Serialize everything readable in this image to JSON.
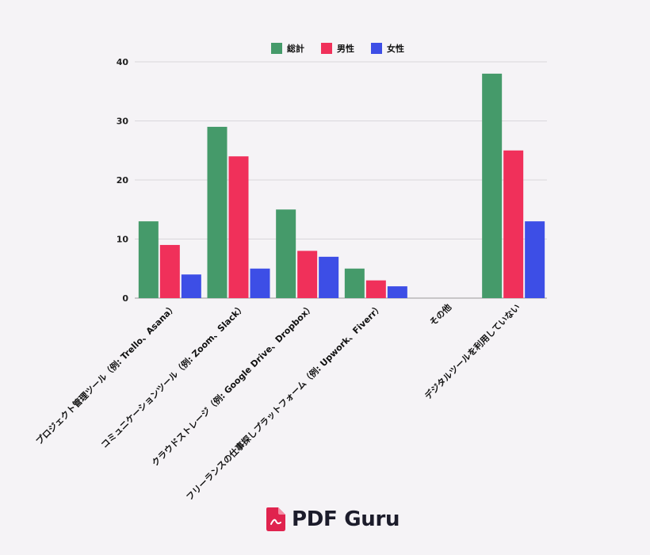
{
  "chart_data": {
    "type": "bar",
    "categories": [
      "プロジェクト管理ツール（例: Trello、Asana）",
      "コミュニケーションツール（例: Zoom、Slack）",
      "クラウドストレージ（例: Google Drive、Dropbox）",
      "フリーランスの仕事探しプラットフォーム（例: Upwork、Fiverr）",
      "その他",
      "デジタルツールを利用していない"
    ],
    "series": [
      {
        "name": "総計",
        "color": "#459a6a",
        "values": [
          13,
          29,
          15,
          5,
          0,
          38
        ]
      },
      {
        "name": "男性",
        "color": "#f0305a",
        "values": [
          9,
          24,
          8,
          3,
          0,
          25
        ]
      },
      {
        "name": "女性",
        "color": "#3d4ee6",
        "values": [
          4,
          5,
          7,
          2,
          0,
          13
        ]
      }
    ],
    "yticks": [
      0,
      10,
      20,
      30,
      40
    ],
    "ylim": [
      0,
      40
    ],
    "grid": true,
    "legend_position": "top-center"
  },
  "brand": {
    "logo_text": "PDF Guru",
    "logo_icon": "pdf-file-icon",
    "accent_color": "#e0234e"
  }
}
